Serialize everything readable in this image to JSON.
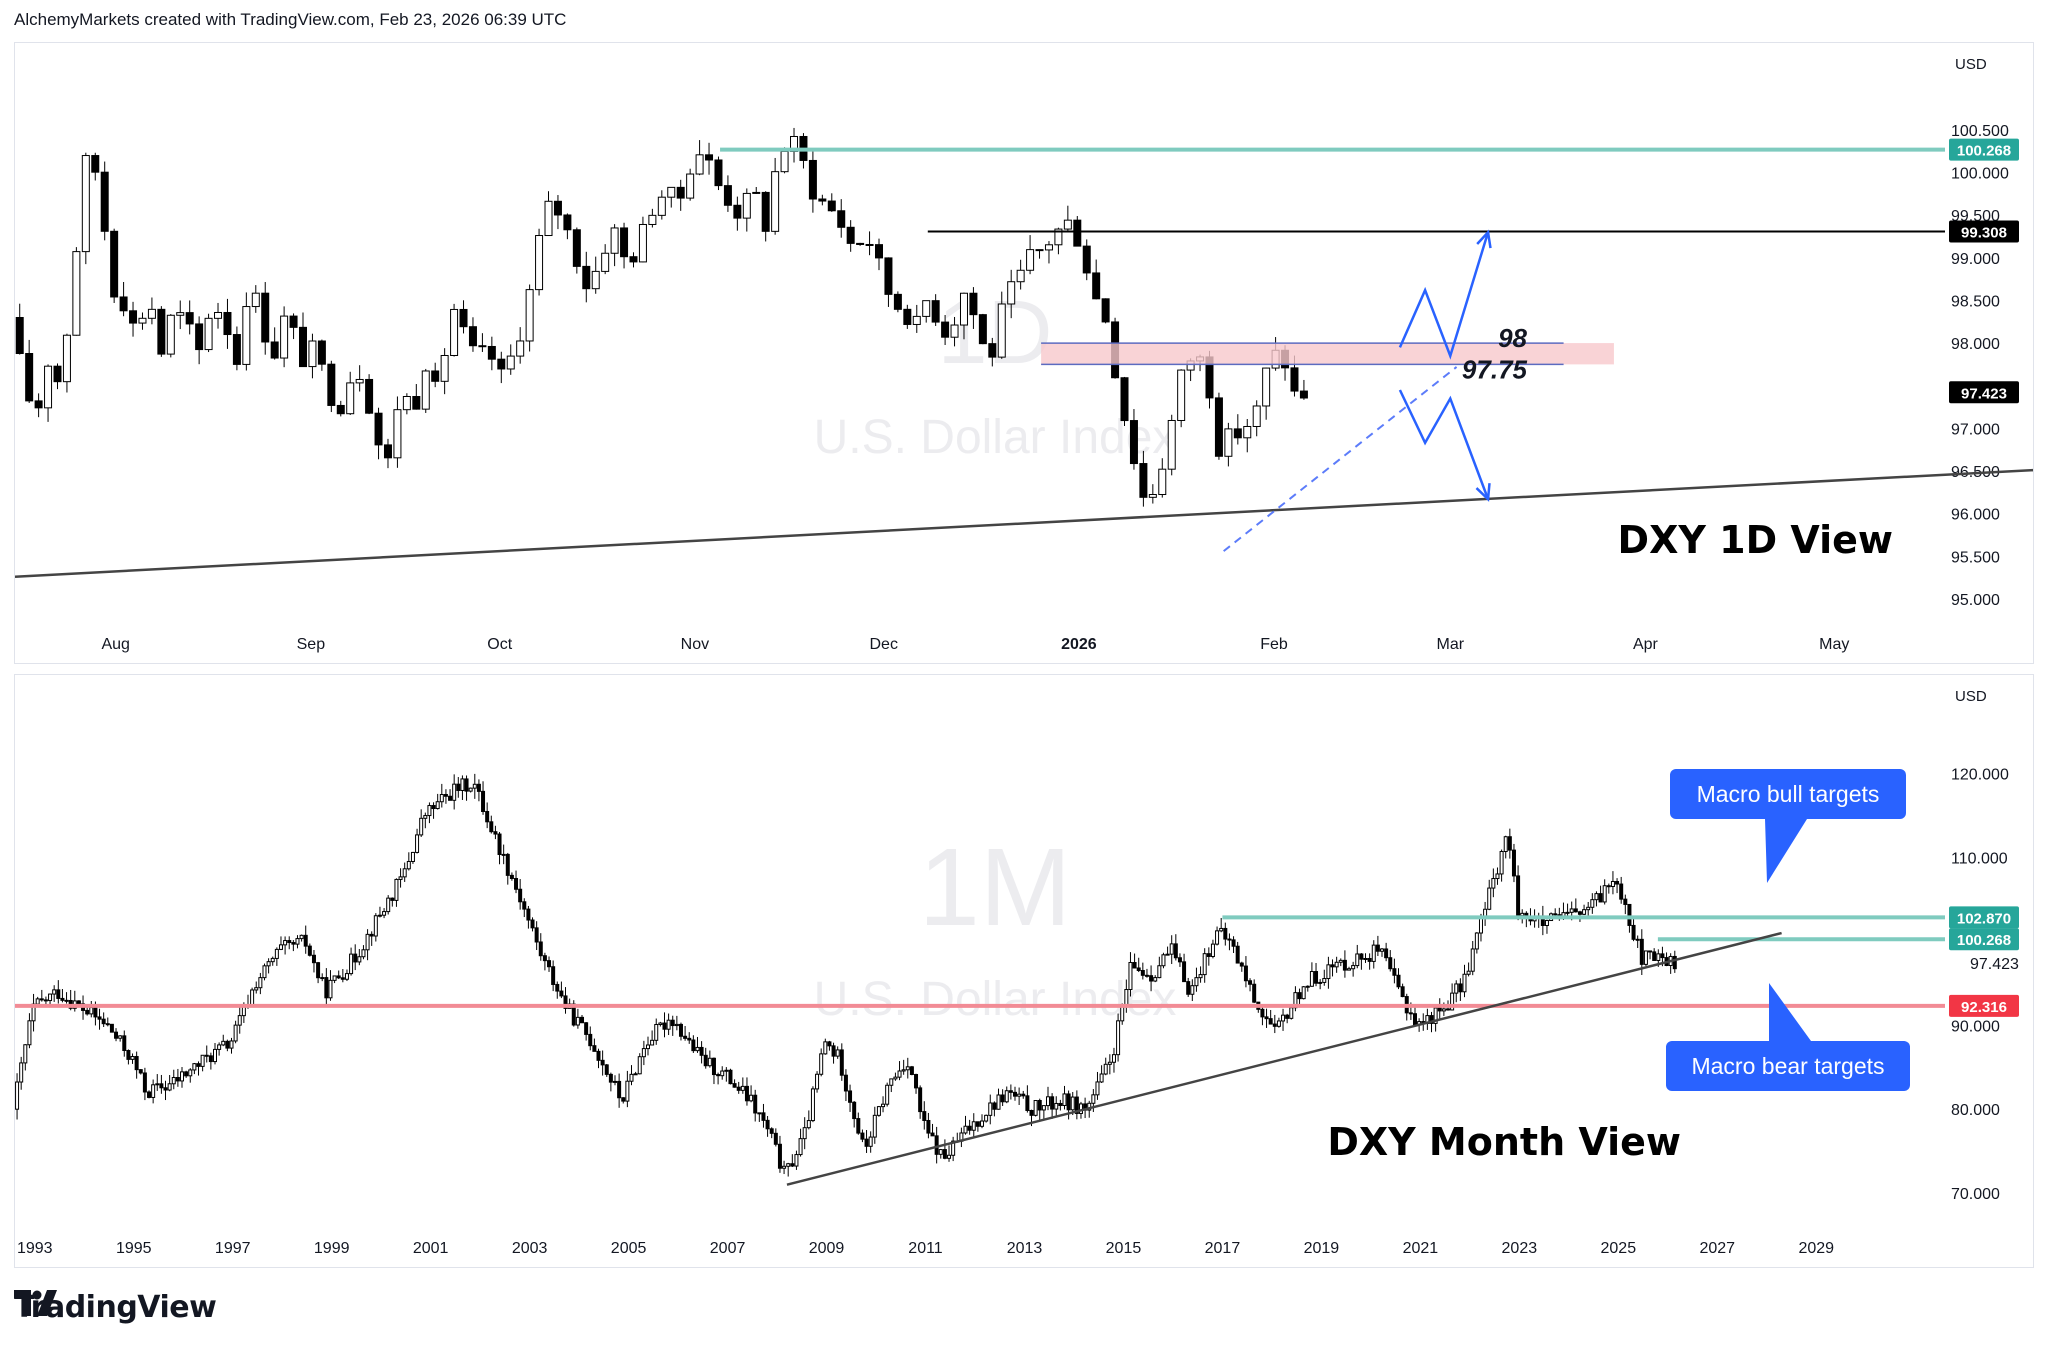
{
  "attribution": "AlchemyMarkets created with TradingView.com, Feb 23, 2026 06:39 UTC",
  "brand": "TradingView",
  "colors": {
    "up": "#ffffff",
    "down": "#000000",
    "teal": "#7fcbbf",
    "teal_badge": "#26a69a",
    "red_line": "#f28b95",
    "red_badge": "#f23645",
    "pink_zone": "#f8c8cc",
    "blue": "#2962ff",
    "callout_blue": "#2962ff",
    "axis_text": "#131722",
    "watermark": "#ececef"
  },
  "chart_data": [
    {
      "id": "daily",
      "type": "candlestick",
      "currency": "USD",
      "watermark_symbol": "1D",
      "watermark_name": "U.S. Dollar Index",
      "annotation_title": "DXY 1D View",
      "x_ticks": [
        "Aug",
        "Sep",
        "Oct",
        "Nov",
        "Dec",
        "2026",
        "Feb",
        "Mar",
        "Apr",
        "May"
      ],
      "x_tick_days": [
        16,
        47,
        77,
        108,
        138,
        169,
        200,
        228,
        259,
        289
      ],
      "x_range_days": [
        0,
        305
      ],
      "y_ticks": [
        "95.000",
        "95.500",
        "96.000",
        "96.500",
        "97.000",
        "98.000",
        "98.500",
        "99.000",
        "99.500",
        "100.000",
        "100.500"
      ],
      "y_range": [
        94.6,
        101.05
      ],
      "zone_labels": [
        "98",
        "97.75"
      ],
      "levels": [
        {
          "value": 100.268,
          "label": "100.268",
          "kind": "resistance-teal",
          "from_day": 112
        },
        {
          "value": 99.308,
          "label": "99.308",
          "kind": "resistance-black",
          "from_day": 145
        }
      ],
      "current_price": {
        "value": 97.423,
        "label": "97.423"
      },
      "zone": {
        "low": 97.75,
        "high": 98.0,
        "from_day": 163,
        "to_day": 254
      },
      "trendline_main": {
        "x1": 0,
        "y1": 95.26,
        "x2": 323,
        "y2": 96.52
      },
      "trendline_dashed": {
        "x1": 192,
        "y1": 95.56,
        "x2": 229,
        "y2": 97.72
      },
      "projection_bull": [
        [
          220,
          97.95
        ],
        [
          224,
          98.62
        ],
        [
          228,
          97.85
        ],
        [
          234,
          99.3
        ]
      ],
      "projection_bear": [
        [
          220,
          97.45
        ],
        [
          224,
          96.83
        ],
        [
          228,
          97.35
        ],
        [
          234,
          96.17
        ]
      ],
      "anchors": [
        [
          0,
          98.3
        ],
        [
          2,
          97.6
        ],
        [
          4,
          97.1
        ],
        [
          6,
          97.8
        ],
        [
          8,
          97.5
        ],
        [
          10,
          98.8
        ],
        [
          12,
          100.1
        ],
        [
          14,
          100.0
        ],
        [
          16,
          98.7
        ],
        [
          18,
          98.5
        ],
        [
          20,
          98.1
        ],
        [
          22,
          98.6
        ],
        [
          24,
          97.9
        ],
        [
          26,
          98.4
        ],
        [
          28,
          98.2
        ],
        [
          30,
          97.9
        ],
        [
          32,
          98.5
        ],
        [
          34,
          98.3
        ],
        [
          36,
          97.8
        ],
        [
          38,
          98.8
        ],
        [
          40,
          98.2
        ],
        [
          42,
          97.9
        ],
        [
          44,
          98.4
        ],
        [
          46,
          97.8
        ],
        [
          48,
          97.9
        ],
        [
          50,
          97.6
        ],
        [
          52,
          97.2
        ],
        [
          54,
          97.6
        ],
        [
          56,
          97.7
        ],
        [
          58,
          96.9
        ],
        [
          60,
          96.6
        ],
        [
          62,
          97.5
        ],
        [
          64,
          97.2
        ],
        [
          66,
          97.8
        ],
        [
          68,
          97.3
        ],
        [
          70,
          98.5
        ],
        [
          72,
          98.1
        ],
        [
          74,
          97.8
        ],
        [
          76,
          97.9
        ],
        [
          78,
          97.6
        ],
        [
          80,
          97.9
        ],
        [
          82,
          98.4
        ],
        [
          84,
          99.2
        ],
        [
          86,
          99.7
        ],
        [
          88,
          99.4
        ],
        [
          90,
          99.0
        ],
        [
          92,
          98.6
        ],
        [
          94,
          99.1
        ],
        [
          96,
          99.3
        ],
        [
          98,
          98.9
        ],
        [
          100,
          99.2
        ],
        [
          102,
          99.6
        ],
        [
          104,
          99.8
        ],
        [
          106,
          99.6
        ],
        [
          108,
          100.1
        ],
        [
          110,
          100.3
        ],
        [
          112,
          99.9
        ],
        [
          114,
          99.7
        ],
        [
          116,
          99.5
        ],
        [
          118,
          99.8
        ],
        [
          120,
          99.4
        ],
        [
          122,
          100.2
        ],
        [
          124,
          100.4
        ],
        [
          126,
          100.1
        ],
        [
          128,
          99.7
        ],
        [
          130,
          99.6
        ],
        [
          132,
          99.4
        ],
        [
          134,
          99.1
        ],
        [
          136,
          99.3
        ],
        [
          138,
          98.9
        ],
        [
          140,
          98.5
        ],
        [
          142,
          98.4
        ],
        [
          144,
          98.2
        ],
        [
          146,
          98.6
        ],
        [
          148,
          98.1
        ],
        [
          150,
          98.3
        ],
        [
          152,
          98.7
        ],
        [
          154,
          98.0
        ],
        [
          156,
          97.9
        ],
        [
          158,
          98.5
        ],
        [
          160,
          98.7
        ],
        [
          162,
          99.0
        ],
        [
          164,
          99.1
        ],
        [
          166,
          99.3
        ],
        [
          168,
          99.4
        ],
        [
          170,
          99.2
        ],
        [
          172,
          98.6
        ],
        [
          174,
          98.3
        ],
        [
          176,
          97.5
        ],
        [
          178,
          96.8
        ],
        [
          180,
          96.2
        ],
        [
          182,
          96.3
        ],
        [
          184,
          96.9
        ],
        [
          186,
          97.6
        ],
        [
          188,
          97.9
        ],
        [
          190,
          97.7
        ],
        [
          192,
          96.8
        ],
        [
          194,
          96.9
        ],
        [
          196,
          97.0
        ],
        [
          198,
          97.2
        ],
        [
          200,
          97.8
        ],
        [
          202,
          97.9
        ],
        [
          204,
          97.4
        ]
      ],
      "segment_overrides": [
        [
          164,
          99.1
        ],
        [
          170,
          99.3
        ],
        [
          173,
          98.6
        ],
        [
          176,
          97.3
        ],
        [
          178,
          96.7
        ],
        [
          180,
          96.0
        ],
        [
          182,
          96.3
        ],
        [
          184,
          96.9
        ],
        [
          186,
          97.5
        ],
        [
          188,
          97.9
        ],
        [
          190,
          97.6
        ],
        [
          191,
          96.9
        ],
        [
          194,
          96.8
        ],
        [
          197,
          97.1
        ],
        [
          199,
          97.5
        ],
        [
          201,
          97.9
        ],
        [
          203,
          97.8
        ],
        [
          204,
          97.4
        ]
      ]
    },
    {
      "id": "monthly",
      "type": "candlestick",
      "currency": "USD",
      "watermark_symbol": "1M",
      "watermark_name": "U.S. Dollar Index",
      "annotation_title": "DXY Month View",
      "x_ticks": [
        "1993",
        "1995",
        "1997",
        "1999",
        "2001",
        "2003",
        "2005",
        "2007",
        "2009",
        "2011",
        "2013",
        "2015",
        "2017",
        "2019",
        "2021",
        "2023",
        "2025",
        "2027",
        "2029"
      ],
      "x_tick_years": [
        1993,
        1995,
        1997,
        1999,
        2001,
        2003,
        2005,
        2007,
        2009,
        2011,
        2013,
        2015,
        2017,
        2019,
        2021,
        2023,
        2025,
        2027,
        2029
      ],
      "x_range_years": [
        1992.6,
        2031.4
      ],
      "y_ticks": [
        "70.000",
        "80.000",
        "90.000",
        "110.000",
        "120.000"
      ],
      "y_range": [
        65,
        127
      ],
      "callouts": [
        {
          "label": "Macro bull targets",
          "direction": "down"
        },
        {
          "label": "Macro bear targets",
          "direction": "up"
        }
      ],
      "levels": [
        {
          "value": 102.87,
          "label": "102.870",
          "kind": "resistance-teal",
          "from_year": 2017.0
        },
        {
          "value": 100.268,
          "label": "100.268",
          "kind": "resistance-teal",
          "from_year": 2025.8
        },
        {
          "value": 92.316,
          "label": "92.316",
          "kind": "support-red",
          "from_year": 1992.6
        }
      ],
      "current_price": {
        "value": 97.423,
        "label": "97.423"
      },
      "trendline_main": {
        "x1": 2008.2,
        "y1": 71.0,
        "x2": 2028.3,
        "y2": 101.0
      },
      "anchors": [
        [
          1992.6,
          80.0
        ],
        [
          1993.0,
          92.0
        ],
        [
          1993.5,
          94.0
        ],
        [
          1994.0,
          92.0
        ],
        [
          1994.5,
          90.0
        ],
        [
          1995.0,
          86.0
        ],
        [
          1995.3,
          82.0
        ],
        [
          1995.8,
          83.0
        ],
        [
          1996.5,
          86.0
        ],
        [
          1997.0,
          88.0
        ],
        [
          1997.5,
          95.0
        ],
        [
          1998.0,
          99.0
        ],
        [
          1998.5,
          100.0
        ],
        [
          1998.9,
          94.0
        ],
        [
          1999.5,
          98.0
        ],
        [
          2000.0,
          103.0
        ],
        [
          2000.5,
          108.0
        ],
        [
          2000.9,
          115.0
        ],
        [
          2001.5,
          118.0
        ],
        [
          2001.9,
          119.0
        ],
        [
          2002.3,
          113.0
        ],
        [
          2002.8,
          106.0
        ],
        [
          2003.3,
          98.0
        ],
        [
          2003.8,
          92.0
        ],
        [
          2004.3,
          88.0
        ],
        [
          2004.9,
          81.0
        ],
        [
          2005.4,
          88.0
        ],
        [
          2005.9,
          91.0
        ],
        [
          2006.5,
          86.0
        ],
        [
          2007.0,
          84.0
        ],
        [
          2007.5,
          81.0
        ],
        [
          2007.9,
          77.0
        ],
        [
          2008.2,
          72.0
        ],
        [
          2008.6,
          77.0
        ],
        [
          2009.0,
          88.0
        ],
        [
          2009.3,
          86.0
        ],
        [
          2009.8,
          75.0
        ],
        [
          2010.3,
          83.0
        ],
        [
          2010.7,
          86.0
        ],
        [
          2011.0,
          78.0
        ],
        [
          2011.4,
          74.0
        ],
        [
          2011.8,
          77.0
        ],
        [
          2012.3,
          80.0
        ],
        [
          2012.7,
          82.0
        ],
        [
          2013.2,
          80.0
        ],
        [
          2013.8,
          81.0
        ],
        [
          2014.3,
          80.0
        ],
        [
          2014.8,
          86.0
        ],
        [
          2015.2,
          97.0
        ],
        [
          2015.6,
          96.0
        ],
        [
          2016.0,
          99.0
        ],
        [
          2016.4,
          94.0
        ],
        [
          2016.9,
          101.0
        ],
        [
          2017.2,
          100.0
        ],
        [
          2017.7,
          93.0
        ],
        [
          2018.1,
          89.0
        ],
        [
          2018.7,
          95.0
        ],
        [
          2019.3,
          97.0
        ],
        [
          2019.8,
          98.0
        ],
        [
          2020.2,
          99.0
        ],
        [
          2020.7,
          93.0
        ],
        [
          2021.0,
          90.0
        ],
        [
          2021.5,
          92.0
        ],
        [
          2021.9,
          95.0
        ],
        [
          2022.3,
          103.0
        ],
        [
          2022.8,
          113.0
        ],
        [
          2023.0,
          104.0
        ],
        [
          2023.5,
          102.0
        ],
        [
          2024.0,
          103.0
        ],
        [
          2024.5,
          104.0
        ],
        [
          2025.0,
          108.0
        ],
        [
          2025.2,
          104.0
        ],
        [
          2025.5,
          98.0
        ],
        [
          2026.0,
          98.0
        ],
        [
          2026.15,
          97.4
        ]
      ]
    }
  ]
}
